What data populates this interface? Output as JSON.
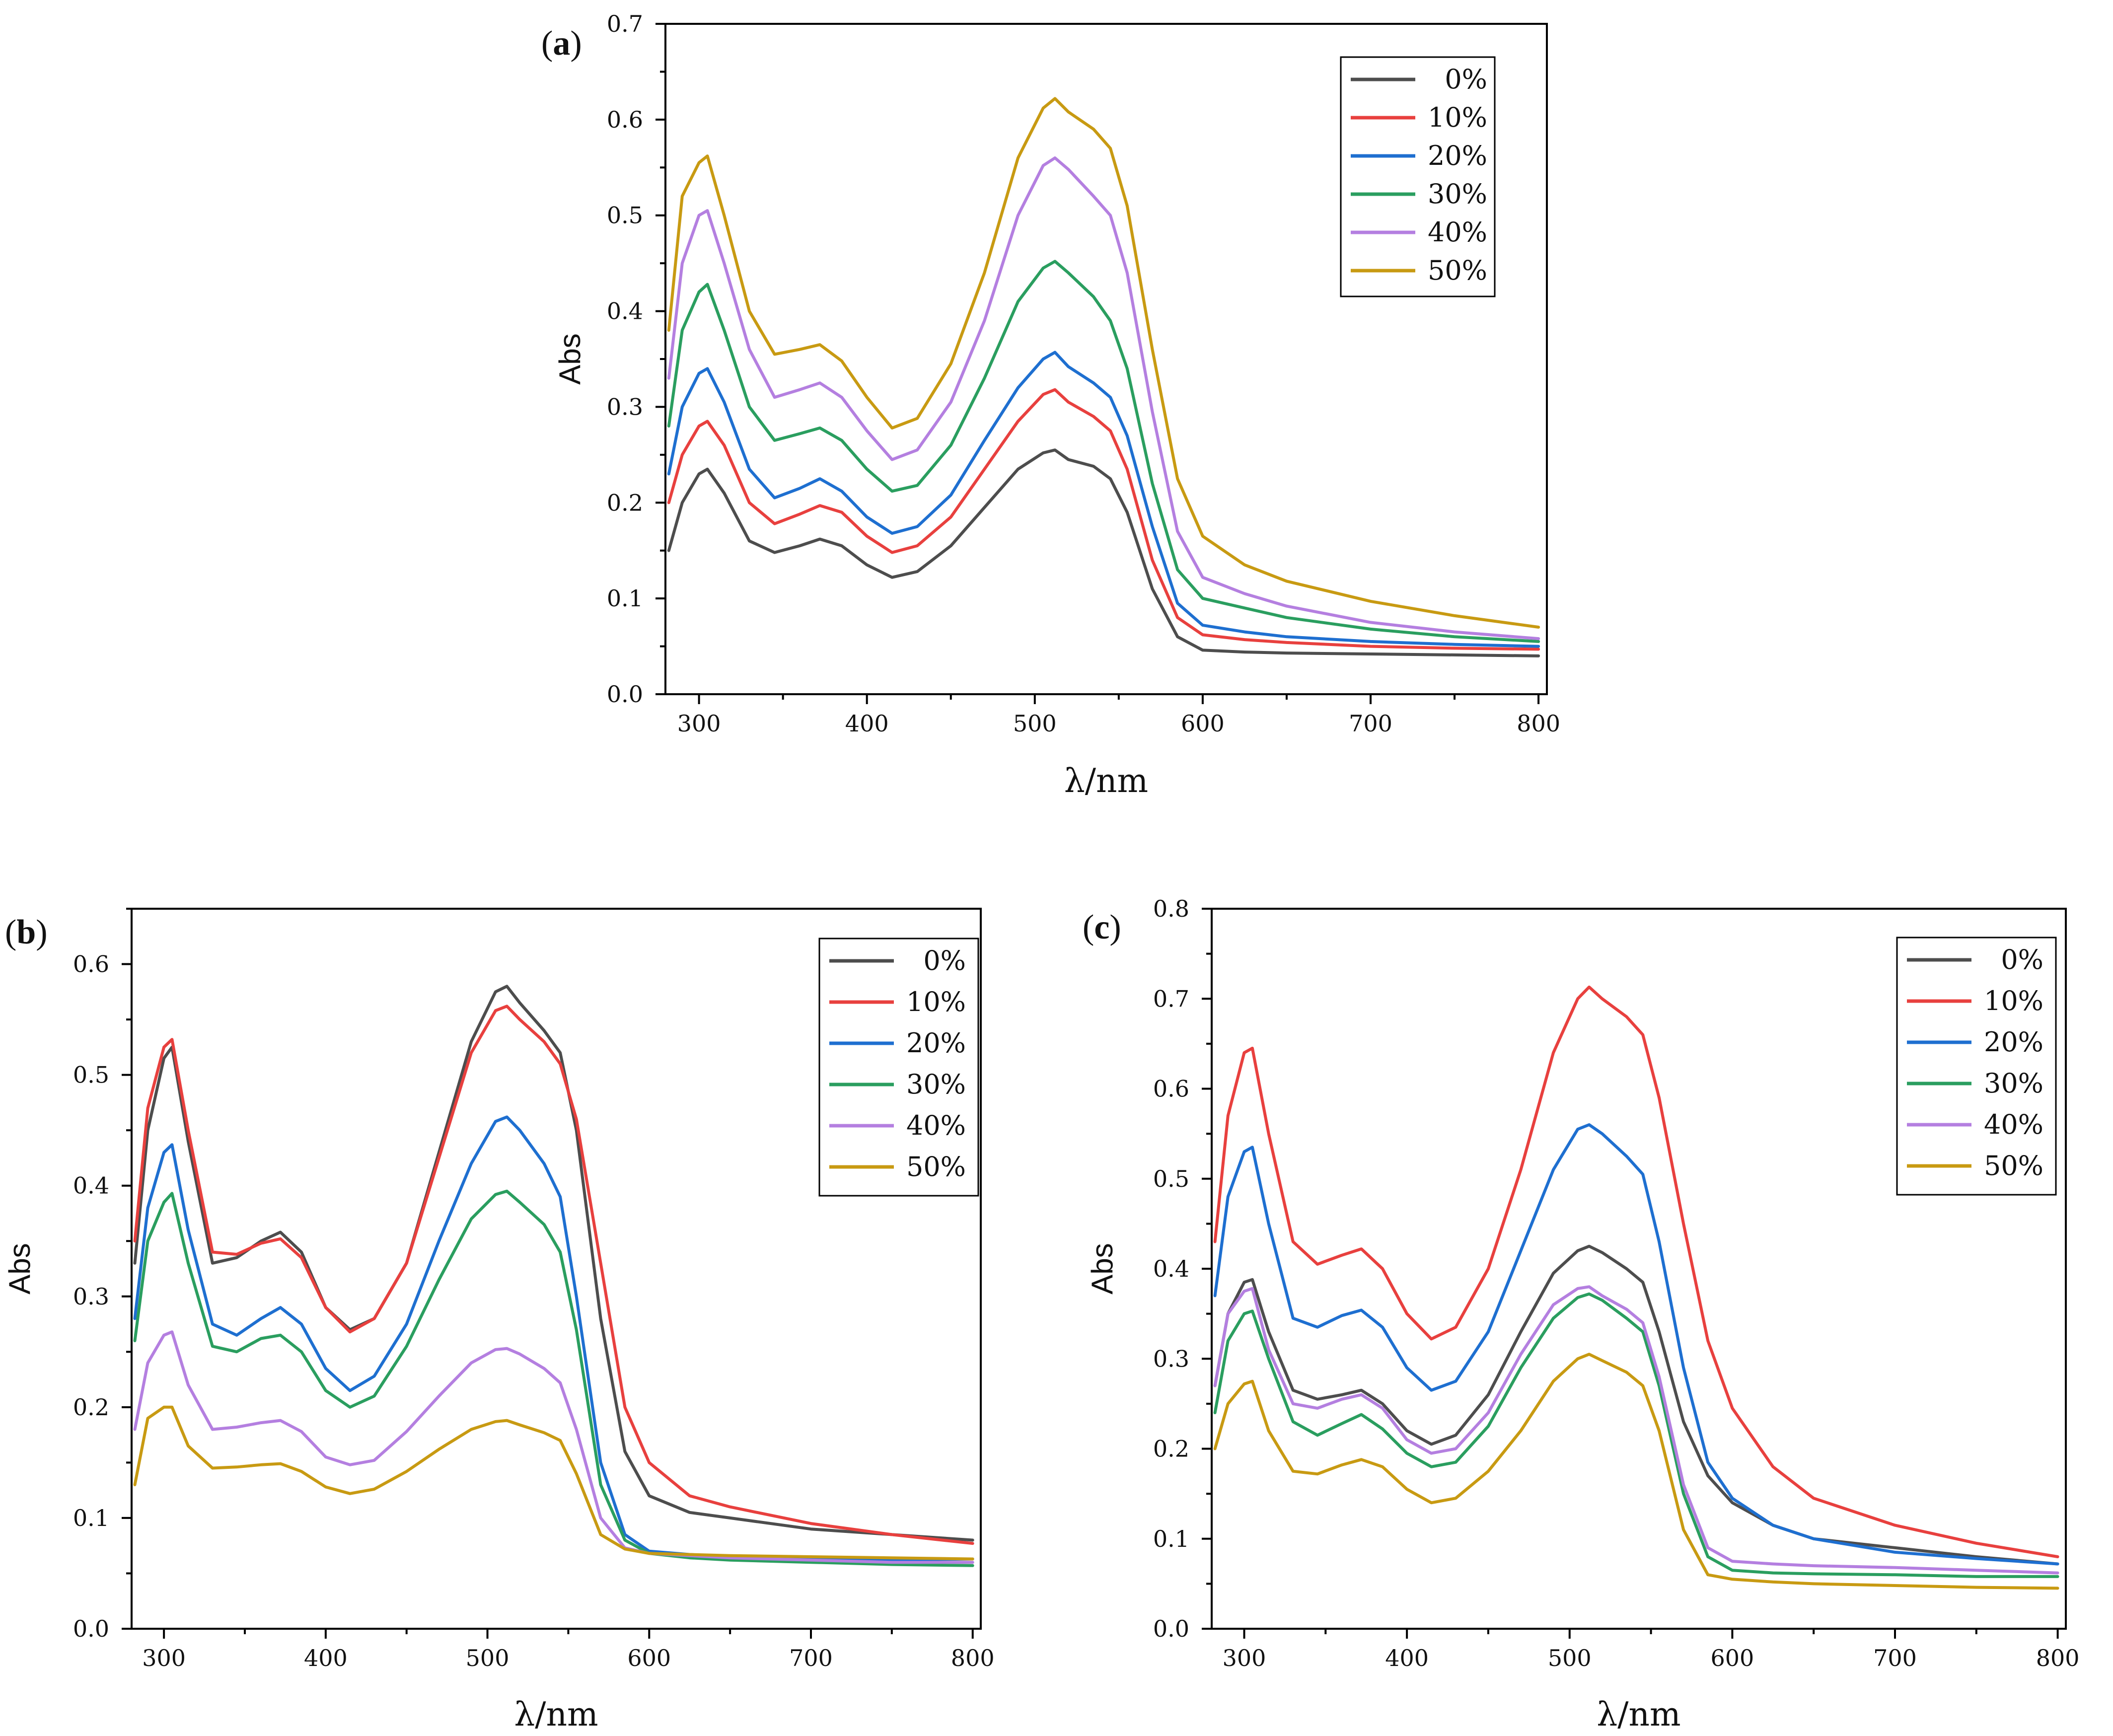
{
  "colors": {
    "0%": "#4d4d4d",
    "10%": "#e8403e",
    "20%": "#1e6fd0",
    "30%": "#2a9e5f",
    "40%": "#b47fe0",
    "50%": "#c89a12"
  },
  "chart_data": [
    {
      "panel": "a",
      "panel_label": "a",
      "type": "line",
      "xlabel": "λ/nm",
      "ylabel": "Abs",
      "xlim": [
        280,
        805
      ],
      "ylim": [
        0.0,
        0.7
      ],
      "xticks": [
        300,
        400,
        500,
        600,
        700,
        800
      ],
      "yticks": [
        0.0,
        0.1,
        0.2,
        0.3,
        0.4,
        0.5,
        0.6,
        0.7
      ],
      "ytick_labels": [
        "0.0",
        "0.1",
        "0.2",
        "0.3",
        "0.4",
        "0.5",
        "0.6",
        "0.7"
      ],
      "legend_position": "top-right",
      "x": [
        282,
        290,
        300,
        305,
        315,
        330,
        345,
        360,
        372,
        385,
        400,
        415,
        430,
        450,
        470,
        490,
        505,
        512,
        520,
        535,
        545,
        555,
        570,
        585,
        600,
        625,
        650,
        700,
        750,
        800
      ],
      "series": [
        {
          "name": "0%",
          "values": [
            0.15,
            0.2,
            0.23,
            0.235,
            0.21,
            0.16,
            0.148,
            0.155,
            0.162,
            0.155,
            0.135,
            0.122,
            0.128,
            0.155,
            0.195,
            0.235,
            0.252,
            0.255,
            0.245,
            0.238,
            0.225,
            0.19,
            0.11,
            0.06,
            0.046,
            0.044,
            0.043,
            0.042,
            0.041,
            0.04
          ]
        },
        {
          "name": "10%",
          "values": [
            0.2,
            0.25,
            0.28,
            0.285,
            0.26,
            0.2,
            0.178,
            0.188,
            0.197,
            0.19,
            0.165,
            0.148,
            0.155,
            0.185,
            0.235,
            0.285,
            0.313,
            0.318,
            0.305,
            0.29,
            0.275,
            0.235,
            0.14,
            0.08,
            0.062,
            0.057,
            0.054,
            0.05,
            0.048,
            0.047
          ]
        },
        {
          "name": "20%",
          "values": [
            0.23,
            0.3,
            0.335,
            0.34,
            0.305,
            0.235,
            0.205,
            0.215,
            0.225,
            0.212,
            0.185,
            0.168,
            0.175,
            0.208,
            0.265,
            0.32,
            0.35,
            0.357,
            0.342,
            0.325,
            0.31,
            0.27,
            0.175,
            0.095,
            0.072,
            0.065,
            0.06,
            0.055,
            0.052,
            0.05
          ]
        },
        {
          "name": "30%",
          "values": [
            0.28,
            0.38,
            0.42,
            0.428,
            0.38,
            0.3,
            0.265,
            0.272,
            0.278,
            0.265,
            0.235,
            0.212,
            0.218,
            0.26,
            0.33,
            0.41,
            0.445,
            0.452,
            0.44,
            0.415,
            0.39,
            0.34,
            0.22,
            0.13,
            0.1,
            0.09,
            0.08,
            0.068,
            0.06,
            0.055
          ]
        },
        {
          "name": "40%",
          "values": [
            0.33,
            0.45,
            0.5,
            0.505,
            0.45,
            0.36,
            0.31,
            0.318,
            0.325,
            0.31,
            0.275,
            0.245,
            0.255,
            0.305,
            0.39,
            0.5,
            0.552,
            0.56,
            0.548,
            0.52,
            0.5,
            0.44,
            0.295,
            0.17,
            0.122,
            0.105,
            0.092,
            0.075,
            0.065,
            0.058
          ]
        },
        {
          "name": "50%",
          "values": [
            0.38,
            0.52,
            0.555,
            0.562,
            0.5,
            0.4,
            0.355,
            0.36,
            0.365,
            0.348,
            0.31,
            0.278,
            0.288,
            0.345,
            0.44,
            0.56,
            0.612,
            0.622,
            0.608,
            0.59,
            0.57,
            0.51,
            0.36,
            0.225,
            0.165,
            0.135,
            0.118,
            0.097,
            0.082,
            0.07
          ]
        }
      ]
    },
    {
      "panel": "b",
      "panel_label": "b",
      "type": "line",
      "xlabel": "λ/nm",
      "ylabel": "Abs",
      "xlim": [
        280,
        805
      ],
      "ylim": [
        0.0,
        0.65
      ],
      "xticks": [
        300,
        400,
        500,
        600,
        700,
        800
      ],
      "yticks": [
        0.0,
        0.1,
        0.2,
        0.3,
        0.4,
        0.5,
        0.6
      ],
      "ytick_labels": [
        "0.0",
        "0.1",
        "0.2",
        "0.3",
        "0.4",
        "0.5",
        "0.6"
      ],
      "legend_position": "top-right",
      "x": [
        282,
        290,
        300,
        305,
        315,
        330,
        345,
        360,
        372,
        385,
        400,
        415,
        430,
        450,
        470,
        490,
        505,
        512,
        520,
        535,
        545,
        555,
        570,
        585,
        600,
        625,
        650,
        700,
        750,
        800
      ],
      "series": [
        {
          "name": "0%",
          "values": [
            0.33,
            0.45,
            0.515,
            0.525,
            0.44,
            0.33,
            0.335,
            0.35,
            0.358,
            0.34,
            0.29,
            0.27,
            0.28,
            0.33,
            0.43,
            0.53,
            0.575,
            0.58,
            0.565,
            0.54,
            0.52,
            0.45,
            0.28,
            0.16,
            0.12,
            0.105,
            0.1,
            0.09,
            0.085,
            0.08
          ]
        },
        {
          "name": "10%",
          "values": [
            0.35,
            0.47,
            0.525,
            0.532,
            0.45,
            0.34,
            0.338,
            0.348,
            0.352,
            0.335,
            0.29,
            0.268,
            0.28,
            0.33,
            0.425,
            0.52,
            0.558,
            0.562,
            0.55,
            0.53,
            0.51,
            0.46,
            0.33,
            0.2,
            0.15,
            0.12,
            0.11,
            0.095,
            0.085,
            0.077
          ]
        },
        {
          "name": "20%",
          "values": [
            0.28,
            0.38,
            0.43,
            0.437,
            0.36,
            0.275,
            0.265,
            0.28,
            0.29,
            0.275,
            0.235,
            0.215,
            0.228,
            0.275,
            0.35,
            0.42,
            0.458,
            0.462,
            0.45,
            0.42,
            0.39,
            0.3,
            0.15,
            0.085,
            0.07,
            0.067,
            0.065,
            0.063,
            0.062,
            0.063
          ]
        },
        {
          "name": "30%",
          "values": [
            0.26,
            0.35,
            0.385,
            0.393,
            0.33,
            0.255,
            0.25,
            0.262,
            0.265,
            0.25,
            0.215,
            0.2,
            0.21,
            0.255,
            0.315,
            0.37,
            0.392,
            0.395,
            0.385,
            0.365,
            0.34,
            0.27,
            0.13,
            0.08,
            0.068,
            0.064,
            0.062,
            0.06,
            0.058,
            0.057
          ]
        },
        {
          "name": "40%",
          "values": [
            0.18,
            0.24,
            0.265,
            0.268,
            0.22,
            0.18,
            0.182,
            0.186,
            0.188,
            0.178,
            0.155,
            0.148,
            0.152,
            0.178,
            0.21,
            0.24,
            0.252,
            0.253,
            0.248,
            0.235,
            0.222,
            0.18,
            0.1,
            0.073,
            0.068,
            0.066,
            0.064,
            0.062,
            0.06,
            0.06
          ]
        },
        {
          "name": "50%",
          "values": [
            0.13,
            0.19,
            0.2,
            0.2,
            0.165,
            0.145,
            0.146,
            0.148,
            0.149,
            0.142,
            0.128,
            0.122,
            0.126,
            0.142,
            0.162,
            0.18,
            0.187,
            0.188,
            0.184,
            0.177,
            0.17,
            0.14,
            0.085,
            0.072,
            0.068,
            0.067,
            0.066,
            0.065,
            0.064,
            0.063
          ]
        }
      ]
    },
    {
      "panel": "c",
      "panel_label": "c",
      "type": "line",
      "xlabel": "λ/nm",
      "ylabel": "Abs",
      "xlim": [
        280,
        805
      ],
      "ylim": [
        0.0,
        0.8
      ],
      "xticks": [
        300,
        400,
        500,
        600,
        700,
        800
      ],
      "yticks": [
        0.0,
        0.1,
        0.2,
        0.3,
        0.4,
        0.5,
        0.6,
        0.7,
        0.8
      ],
      "ytick_labels": [
        "0.0",
        "0.1",
        "0.2",
        "0.3",
        "0.4",
        "0.5",
        "0.6",
        "0.7",
        "0.8"
      ],
      "legend_position": "top-right",
      "x": [
        282,
        290,
        300,
        305,
        315,
        330,
        345,
        360,
        372,
        385,
        400,
        415,
        430,
        450,
        470,
        490,
        505,
        512,
        520,
        535,
        545,
        555,
        570,
        585,
        600,
        625,
        650,
        700,
        750,
        800
      ],
      "series": [
        {
          "name": "0%",
          "values": [
            0.27,
            0.35,
            0.385,
            0.388,
            0.33,
            0.265,
            0.255,
            0.26,
            0.265,
            0.25,
            0.22,
            0.205,
            0.215,
            0.26,
            0.33,
            0.395,
            0.42,
            0.425,
            0.418,
            0.4,
            0.385,
            0.33,
            0.23,
            0.17,
            0.14,
            0.115,
            0.1,
            0.09,
            0.08,
            0.072
          ]
        },
        {
          "name": "10%",
          "values": [
            0.43,
            0.57,
            0.64,
            0.645,
            0.55,
            0.43,
            0.405,
            0.415,
            0.422,
            0.4,
            0.35,
            0.322,
            0.335,
            0.4,
            0.51,
            0.64,
            0.7,
            0.713,
            0.7,
            0.68,
            0.66,
            0.59,
            0.45,
            0.32,
            0.245,
            0.18,
            0.145,
            0.115,
            0.095,
            0.08
          ]
        },
        {
          "name": "20%",
          "values": [
            0.37,
            0.48,
            0.53,
            0.535,
            0.45,
            0.345,
            0.335,
            0.348,
            0.354,
            0.335,
            0.29,
            0.265,
            0.275,
            0.33,
            0.42,
            0.51,
            0.555,
            0.56,
            0.55,
            0.525,
            0.505,
            0.43,
            0.29,
            0.185,
            0.145,
            0.115,
            0.1,
            0.085,
            0.078,
            0.072
          ]
        },
        {
          "name": "30%",
          "values": [
            0.24,
            0.32,
            0.35,
            0.353,
            0.3,
            0.23,
            0.215,
            0.228,
            0.238,
            0.222,
            0.195,
            0.18,
            0.185,
            0.225,
            0.29,
            0.345,
            0.368,
            0.372,
            0.365,
            0.345,
            0.33,
            0.27,
            0.15,
            0.08,
            0.065,
            0.062,
            0.061,
            0.06,
            0.058,
            0.058
          ]
        },
        {
          "name": "40%",
          "values": [
            0.27,
            0.35,
            0.375,
            0.378,
            0.31,
            0.25,
            0.245,
            0.255,
            0.26,
            0.245,
            0.21,
            0.195,
            0.2,
            0.24,
            0.305,
            0.36,
            0.378,
            0.38,
            0.37,
            0.355,
            0.34,
            0.28,
            0.16,
            0.09,
            0.075,
            0.072,
            0.07,
            0.068,
            0.065,
            0.062
          ]
        },
        {
          "name": "50%",
          "values": [
            0.2,
            0.25,
            0.272,
            0.275,
            0.22,
            0.175,
            0.172,
            0.182,
            0.188,
            0.18,
            0.155,
            0.14,
            0.145,
            0.175,
            0.22,
            0.275,
            0.3,
            0.305,
            0.298,
            0.285,
            0.27,
            0.22,
            0.11,
            0.06,
            0.055,
            0.052,
            0.05,
            0.048,
            0.046,
            0.045
          ]
        }
      ]
    }
  ]
}
